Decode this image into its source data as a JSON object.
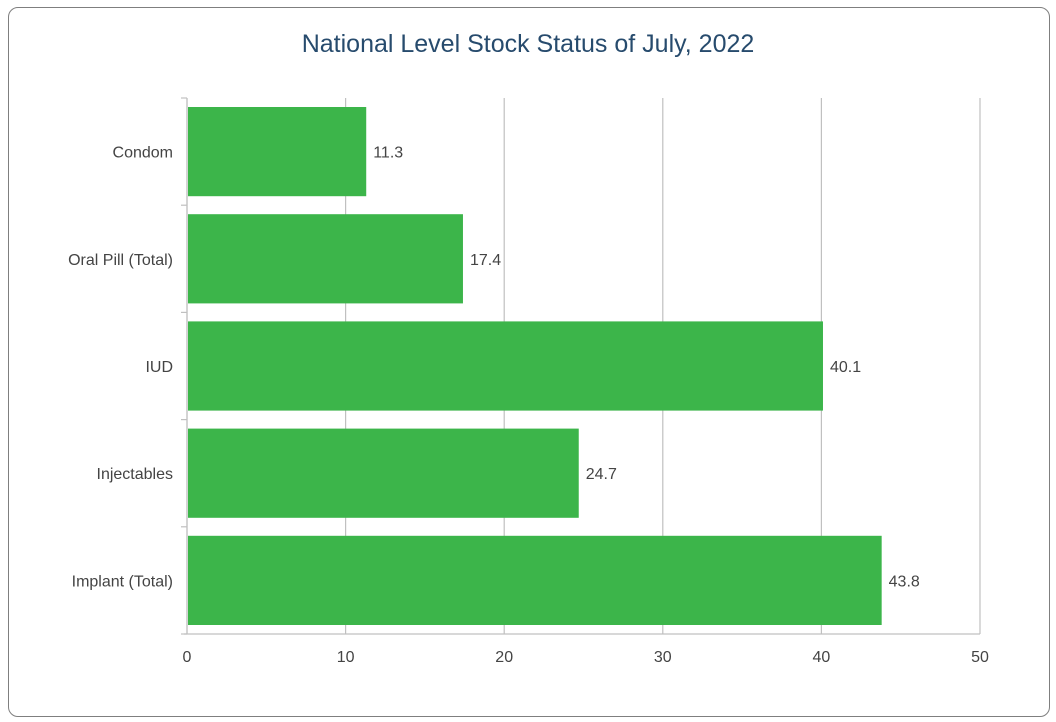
{
  "chart_data": {
    "type": "bar",
    "orientation": "horizontal",
    "title": "National Level Stock Status of July, 2022",
    "categories": [
      "Condom",
      "Oral Pill (Total)",
      "IUD",
      "Injectables",
      "Implant (Total)"
    ],
    "values": [
      11.3,
      17.4,
      40.1,
      24.7,
      43.8
    ],
    "value_labels": [
      "11.3",
      "17.4",
      "40.1",
      "24.7",
      "43.8"
    ],
    "xlim": [
      0,
      50
    ],
    "xticks": [
      0,
      10,
      20,
      30,
      40,
      50
    ],
    "grid": true,
    "bar_color": "#3cb54a",
    "grid_color": "#c0c0c0",
    "text_color": "#444444",
    "title_color": "#274b6d"
  }
}
